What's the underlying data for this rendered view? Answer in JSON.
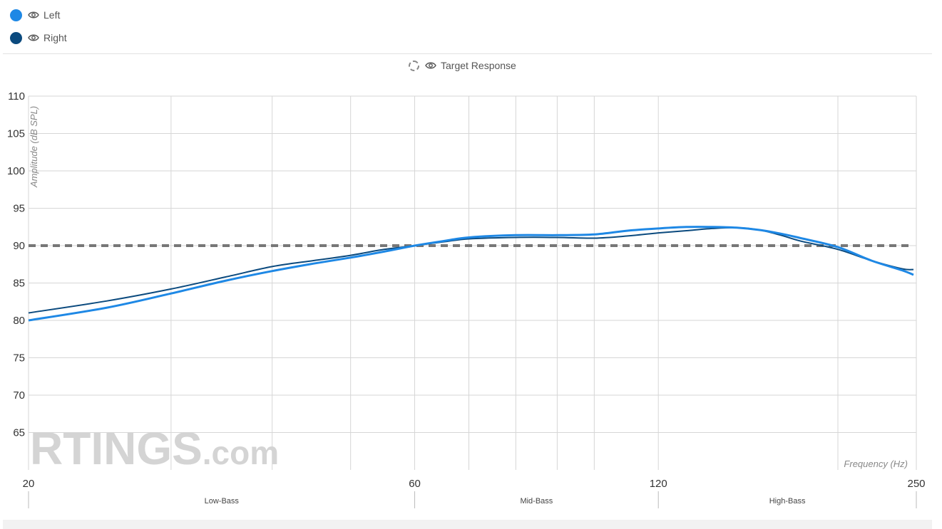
{
  "legend": {
    "left": {
      "label": "Left",
      "color": "#1e88e5"
    },
    "right": {
      "label": "Right",
      "color": "#0b4a7e"
    },
    "target": {
      "label": "Target Response",
      "color": "#777777"
    }
  },
  "icons": {
    "visibility": "eye-icon"
  },
  "watermark": {
    "brand": "RTINGS",
    "suffix": ".com"
  },
  "chart_data": {
    "type": "line",
    "xscale": "log",
    "xlim": [
      20,
      250
    ],
    "ylim": [
      60,
      110
    ],
    "yticks": [
      65,
      70,
      75,
      80,
      85,
      90,
      95,
      100,
      105,
      110
    ],
    "xticks": [
      20,
      60,
      120,
      250
    ],
    "xgrid": [
      20,
      30,
      40,
      50,
      60,
      70,
      80,
      90,
      100,
      120,
      200,
      250
    ],
    "ylabel": "Amplitude (dB SPL)",
    "xlabel": "Frequency (Hz)",
    "regions": [
      {
        "label": "Low-Bass",
        "from": 20,
        "to": 60
      },
      {
        "label": "Mid-Bass",
        "from": 60,
        "to": 120
      },
      {
        "label": "High-Bass",
        "from": 120,
        "to": 250
      }
    ],
    "target": 90,
    "series": [
      {
        "name": "Left",
        "color": "#1e88e5",
        "x": [
          20,
          25,
          30,
          35,
          40,
          45,
          50,
          55,
          60,
          65,
          70,
          80,
          90,
          100,
          110,
          120,
          130,
          140,
          150,
          160,
          170,
          180,
          200,
          220,
          240,
          248
        ],
        "y": [
          80.0,
          81.7,
          83.6,
          85.3,
          86.6,
          87.6,
          88.4,
          89.2,
          90.0,
          90.6,
          91.1,
          91.4,
          91.4,
          91.5,
          92.0,
          92.3,
          92.5,
          92.5,
          92.4,
          92.1,
          91.6,
          91.0,
          89.8,
          88.0,
          86.7,
          86.1
        ]
      },
      {
        "name": "Right",
        "color": "#0b4a7e",
        "x": [
          20,
          25,
          30,
          35,
          40,
          45,
          50,
          55,
          60,
          65,
          70,
          80,
          90,
          100,
          110,
          120,
          130,
          140,
          150,
          160,
          170,
          180,
          200,
          220,
          240,
          248
        ],
        "y": [
          81.0,
          82.6,
          84.2,
          85.8,
          87.2,
          88.0,
          88.7,
          89.5,
          90.0,
          90.5,
          90.9,
          91.1,
          91.1,
          91.0,
          91.3,
          91.7,
          92.0,
          92.3,
          92.4,
          92.1,
          91.4,
          90.6,
          89.5,
          88.0,
          86.9,
          86.8
        ]
      }
    ]
  }
}
